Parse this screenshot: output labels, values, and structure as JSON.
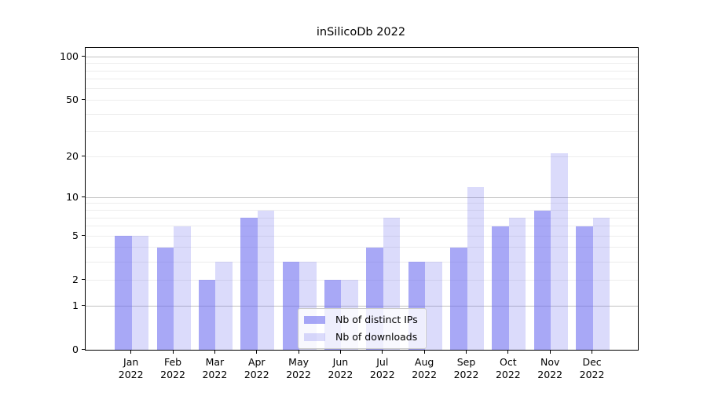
{
  "chart_data": {
    "type": "bar",
    "title": "inSilicoDb 2022",
    "categories": [
      "Jan 2022",
      "Feb 2022",
      "Mar 2022",
      "Apr 2022",
      "May 2022",
      "Jun 2022",
      "Jul 2022",
      "Aug 2022",
      "Sep 2022",
      "Oct 2022",
      "Nov 2022",
      "Dec 2022"
    ],
    "x_tick_labels": [
      [
        "Jan",
        "2022"
      ],
      [
        "Feb",
        "2022"
      ],
      [
        "Mar",
        "2022"
      ],
      [
        "Apr",
        "2022"
      ],
      [
        "May",
        "2022"
      ],
      [
        "Jun",
        "2022"
      ],
      [
        "Jul",
        "2022"
      ],
      [
        "Aug",
        "2022"
      ],
      [
        "Sep",
        "2022"
      ],
      [
        "Oct",
        "2022"
      ],
      [
        "Nov",
        "2022"
      ],
      [
        "Dec",
        "2022"
      ]
    ],
    "series": [
      {
        "name": "Nb of distinct IPs",
        "color": "rgba(102,102,240,0.57)",
        "values": [
          5,
          4,
          2,
          7,
          3,
          2,
          4,
          3,
          4,
          6,
          8,
          6
        ]
      },
      {
        "name": "Nb of downloads",
        "color": "rgba(102,102,240,0.235)",
        "values": [
          5,
          6,
          3,
          8,
          3,
          2,
          7,
          3,
          12,
          7,
          21,
          7
        ]
      }
    ],
    "xlabel": "",
    "ylabel": "",
    "yscale": "log1p",
    "y_ticks": [
      0,
      1,
      2,
      5,
      10,
      20,
      50,
      100
    ],
    "y_axis_max": 115,
    "ylim": [
      0,
      115
    ],
    "grid": {
      "on": true,
      "major_lines": [
        1,
        10,
        100
      ],
      "minor_lines": [
        2,
        3,
        4,
        5,
        6,
        7,
        8,
        9,
        20,
        30,
        40,
        50,
        60,
        70,
        80,
        90
      ],
      "major_color": "#c2c2c2",
      "minor_color": "#ededed"
    },
    "legend": {
      "position": "lower center",
      "items": [
        "Nb of distinct IPs",
        "Nb of downloads"
      ]
    },
    "frame_color": "#000000",
    "background_color": "#ffffff",
    "tick_color": "#000000"
  }
}
